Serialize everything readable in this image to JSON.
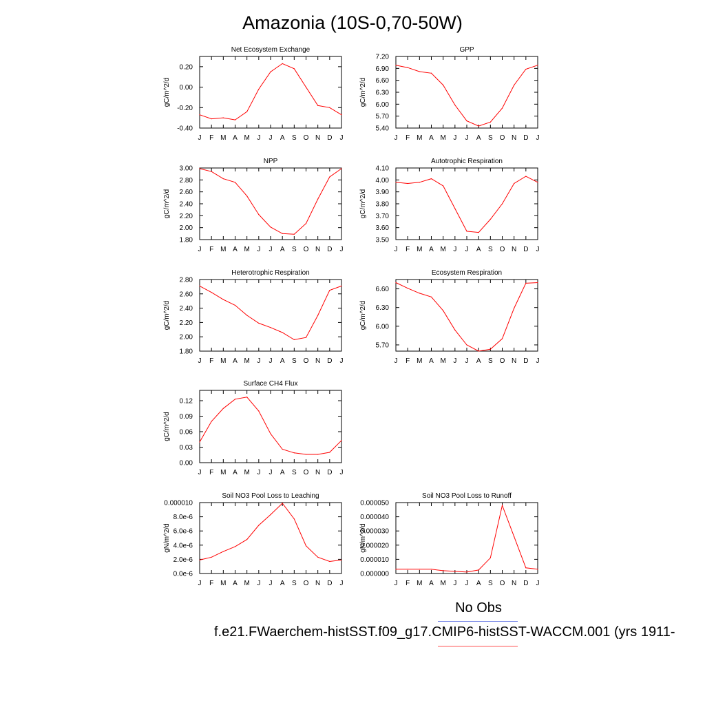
{
  "title": "Amazonia (10S-0,70-50W)",
  "legend": {
    "obs_label": "No Obs",
    "case_label": "f.e21.FWaerchem-histSST.f09_g17.CMIP6-histSST-WACCM.001 (yrs 1911-",
    "obs_color": "#6f7fe6",
    "case_color": "#ff4d4d"
  },
  "line_color": "#ff0000",
  "months": [
    "J",
    "F",
    "M",
    "A",
    "M",
    "J",
    "J",
    "A",
    "S",
    "O",
    "N",
    "D",
    "J"
  ],
  "chart_data": [
    {
      "type": "line",
      "title": "Net Ecosystem Exchange",
      "ylabel": "gC/m^2/d",
      "ylim": [
        -0.4,
        0.3
      ],
      "yticks": [
        -0.4,
        -0.2,
        0.0,
        0.2
      ],
      "yticklabels": [
        "-0.40",
        "-0.20",
        "0.00",
        "0.20"
      ],
      "values": [
        -0.27,
        -0.31,
        -0.3,
        -0.32,
        -0.24,
        -0.02,
        0.15,
        0.23,
        0.18,
        0.0,
        -0.18,
        -0.2,
        -0.27
      ]
    },
    {
      "type": "line",
      "title": "GPP",
      "ylabel": "gC/m^2/d",
      "ylim": [
        5.4,
        7.2
      ],
      "yticks": [
        5.4,
        5.7,
        6.0,
        6.3,
        6.6,
        6.9,
        7.2
      ],
      "yticklabels": [
        "5.40",
        "5.70",
        "6.00",
        "6.30",
        "6.60",
        "6.90",
        "7.20"
      ],
      "values": [
        6.98,
        6.92,
        6.82,
        6.78,
        6.48,
        5.98,
        5.58,
        5.45,
        5.55,
        5.9,
        6.48,
        6.88,
        6.98
      ]
    },
    {
      "type": "line",
      "title": "NPP",
      "ylabel": "gC/m^2/d",
      "ylim": [
        1.8,
        3.0
      ],
      "yticks": [
        1.8,
        2.0,
        2.2,
        2.4,
        2.6,
        2.8,
        3.0
      ],
      "yticklabels": [
        "1.80",
        "2.00",
        "2.20",
        "2.40",
        "2.60",
        "2.80",
        "3.00"
      ],
      "values": [
        2.99,
        2.94,
        2.82,
        2.76,
        2.53,
        2.22,
        2.01,
        1.9,
        1.89,
        2.07,
        2.48,
        2.85,
        2.99
      ]
    },
    {
      "type": "line",
      "title": "Autotrophic Respiration",
      "ylabel": "gC/m^2/d",
      "ylim": [
        3.5,
        4.1
      ],
      "yticks": [
        3.5,
        3.6,
        3.7,
        3.8,
        3.9,
        4.0,
        4.1
      ],
      "yticklabels": [
        "3.50",
        "3.60",
        "3.70",
        "3.80",
        "3.90",
        "4.00",
        "4.10"
      ],
      "values": [
        3.98,
        3.97,
        3.98,
        4.01,
        3.95,
        3.76,
        3.57,
        3.56,
        3.67,
        3.8,
        3.97,
        4.03,
        3.98
      ]
    },
    {
      "type": "line",
      "title": "Heterotrophic Respiration",
      "ylabel": "gC/m^2/d",
      "ylim": [
        1.8,
        2.8
      ],
      "yticks": [
        1.8,
        2.0,
        2.2,
        2.4,
        2.6,
        2.8
      ],
      "yticklabels": [
        "1.80",
        "2.00",
        "2.20",
        "2.40",
        "2.60",
        "2.80"
      ],
      "values": [
        2.71,
        2.62,
        2.52,
        2.44,
        2.3,
        2.19,
        2.13,
        2.06,
        1.96,
        1.99,
        2.3,
        2.65,
        2.71
      ]
    },
    {
      "type": "line",
      "title": "Ecosystem Respiration",
      "ylabel": "gC/m^2/d",
      "ylim": [
        5.6,
        6.75
      ],
      "yticks": [
        5.7,
        6.0,
        6.3,
        6.6
      ],
      "yticklabels": [
        "5.70",
        "6.00",
        "6.30",
        "6.60"
      ],
      "values": [
        6.7,
        6.61,
        6.53,
        6.47,
        6.25,
        5.94,
        5.7,
        5.6,
        5.63,
        5.8,
        6.29,
        6.69,
        6.7
      ]
    },
    {
      "type": "line",
      "title": "Surface CH4 Flux",
      "ylabel": "gC/m^2/d",
      "ylim": [
        0.0,
        0.14
      ],
      "yticks": [
        0.0,
        0.03,
        0.06,
        0.09,
        0.12
      ],
      "yticklabels": [
        "0.00",
        "0.03",
        "0.06",
        "0.09",
        "0.12"
      ],
      "values": [
        0.04,
        0.08,
        0.105,
        0.123,
        0.127,
        0.1,
        0.056,
        0.026,
        0.019,
        0.016,
        0.016,
        0.02,
        0.043
      ]
    },
    {
      "type": "line",
      "title": "Soil NO3 Pool Loss to Leaching",
      "ylabel": "gN/m^2/d",
      "ylim": [
        0.0,
        1e-05
      ],
      "yticks": [
        0.0,
        2e-06,
        4e-06,
        6e-06,
        8e-06,
        1e-05
      ],
      "yticklabels": [
        "0.0e-6",
        "2.0e-6",
        "4.0e-6",
        "6.0e-6",
        "8.0e-6",
        "0.000010"
      ],
      "values": [
        1.9e-06,
        2.3e-06,
        3.1e-06,
        3.8e-06,
        4.8e-06,
        6.8e-06,
        8.3e-06,
        9.9e-06,
        7.7e-06,
        3.9e-06,
        2.3e-06,
        1.7e-06,
        1.9e-06
      ]
    },
    {
      "type": "line",
      "title": "Soil NO3 Pool Loss to Runoff",
      "ylabel": "gN/m^2/d",
      "ylim": [
        0.0,
        5e-05
      ],
      "yticks": [
        0.0,
        1e-05,
        2e-05,
        3e-05,
        4e-05,
        5e-05
      ],
      "yticklabels": [
        "0.000000",
        "0.000010",
        "0.000020",
        "0.000030",
        "0.000040",
        "0.000050"
      ],
      "values": [
        3e-06,
        3e-06,
        3e-06,
        3e-06,
        2e-06,
        1.5e-06,
        1e-06,
        2.5e-06,
        1.1e-05,
        4.8e-05,
        2.6e-05,
        4e-06,
        3e-06
      ]
    }
  ]
}
